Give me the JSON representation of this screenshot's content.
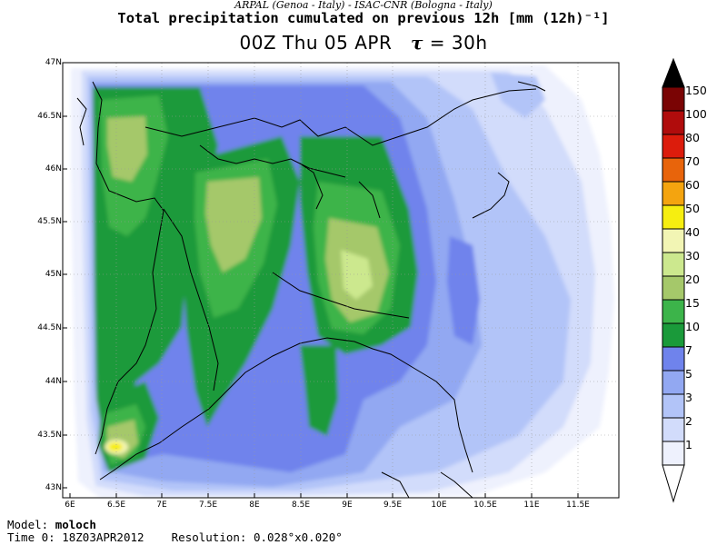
{
  "header": {
    "source_line": "ARPAL (Genoa - Italy)  -  ISAC-CNR (Bologna - Italy)",
    "title": "Total precipitation cumulated on previous 12h [mm (12h)⁻¹]",
    "valid_time": "00Z Thu 05 APR",
    "tau_symbol": "τ",
    "tau_value": "= 30h"
  },
  "map": {
    "lat_labels": [
      "47N",
      "46.5N",
      "46N",
      "45.5N",
      "45N",
      "44.5N",
      "44N",
      "43.5N",
      "43N"
    ],
    "lon_labels": [
      "6E",
      "6.5E",
      "7E",
      "7.5E",
      "8E",
      "8.5E",
      "9E",
      "9.5E",
      "10E",
      "10.5E",
      "11E",
      "11.5E"
    ],
    "lat_range": [
      42.95,
      47.0
    ],
    "lon_range": [
      5.95,
      11.95
    ]
  },
  "colorbar": {
    "levels": [
      "150",
      "100",
      "80",
      "70",
      "60",
      "50",
      "40",
      "30",
      "20",
      "15",
      "10",
      "7",
      "5",
      "3",
      "2",
      "1"
    ],
    "colors": {
      "1": "#eef1fd",
      "2": "#d2dcfb",
      "3": "#b2c4f8",
      "5": "#92a8f2",
      "7": "#6f83ec",
      "10": "#1a9a3a",
      "15": "#3cb44a",
      "20": "#a5c86a",
      "30": "#cce88e",
      "40": "#f2f5b4",
      "50": "#f6ee10",
      "60": "#f4a40f",
      "70": "#e8640b",
      "80": "#dc1c0c",
      "100": "#b00c0c",
      "150": "#7a0404",
      "above": "#000000"
    }
  },
  "footer": {
    "model_label": "Model:",
    "model_value": "moloch",
    "time0_label": "Time 0:",
    "time0_value": "18Z03APR2012",
    "resolution_label": "Resolution:",
    "resolution_value": "0.028°x0.020°"
  }
}
